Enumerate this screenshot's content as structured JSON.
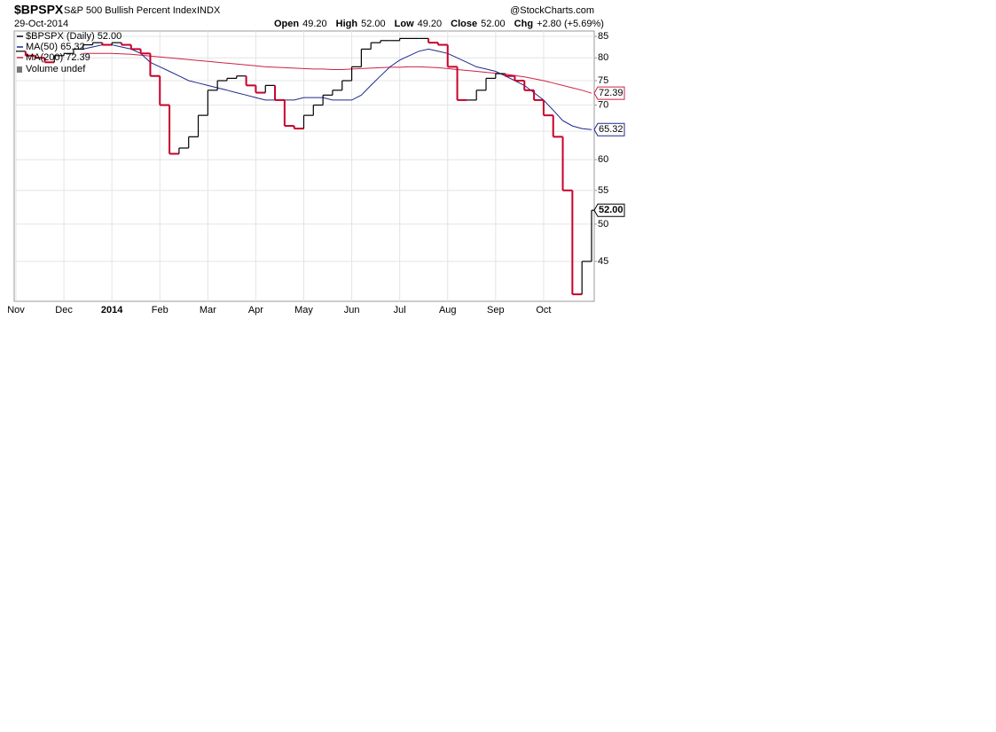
{
  "chart_data": {
    "type": "step",
    "symbol": "$BPSPX",
    "title": "S&P 500 Bullish Percent Index",
    "exchange": "INDX",
    "date": "29-Oct-2014",
    "source": "@StockCharts.com",
    "quote": [
      {
        "label": "Open",
        "value": "49.20"
      },
      {
        "label": "High",
        "value": "52.00"
      },
      {
        "label": "Low",
        "value": "49.20"
      },
      {
        "label": "Close",
        "value": "52.00"
      },
      {
        "label": "Chg",
        "value": "+2.80 (+5.69%)"
      }
    ],
    "legend_note": "Volume undef",
    "log_scale": true,
    "grid": true,
    "up_color": "#000000",
    "down_color": "#c8002a",
    "ylim": [
      40.2,
      86.3
    ],
    "yticks": [
      45,
      50,
      55,
      60,
      65,
      70,
      75,
      80,
      85
    ],
    "categories": [
      "Nov",
      null,
      null,
      null,
      null,
      "Dec",
      null,
      null,
      null,
      null,
      "2014",
      null,
      null,
      null,
      null,
      "Feb",
      null,
      null,
      null,
      null,
      "Mar",
      null,
      null,
      null,
      null,
      "Apr",
      null,
      null,
      null,
      null,
      "May",
      null,
      null,
      null,
      null,
      "Jun",
      null,
      null,
      null,
      null,
      "Jul",
      null,
      null,
      null,
      null,
      "Aug",
      null,
      null,
      null,
      null,
      "Sep",
      null,
      null,
      null,
      null,
      "Oct",
      null,
      null,
      null,
      null,
      null
    ],
    "series": [
      {
        "name": "$BPSPX (Daily) 52.00",
        "color": "#000000",
        "end_label": "52.00",
        "values": [
          81.5,
          80.5,
          80,
          79,
          80.5,
          81,
          82,
          83,
          83.5,
          83,
          83.5,
          83,
          82,
          81,
          76,
          70,
          61,
          62,
          64,
          68,
          73,
          75,
          75.5,
          76,
          74,
          72.5,
          74,
          71,
          66,
          65.5,
          68,
          70,
          72,
          73,
          75,
          78,
          82,
          83.5,
          84,
          84,
          84.5,
          84.5,
          84.5,
          83.5,
          83,
          78,
          71,
          71,
          73,
          75.5,
          76.5,
          76,
          75,
          73,
          71,
          68,
          64,
          55,
          41,
          45,
          52
        ]
      },
      {
        "name": "MA(50) 65.32",
        "color": "#1c2a8c",
        "end_label": "65.32",
        "values": [
          null,
          null,
          null,
          null,
          null,
          null,
          null,
          82,
          82.5,
          83,
          83,
          82.5,
          82,
          81,
          79,
          78,
          77,
          76,
          75,
          74.5,
          74,
          73.5,
          73,
          72.5,
          72,
          71.5,
          71,
          71,
          71,
          71,
          71.5,
          71.5,
          71.5,
          71,
          71,
          71,
          72,
          74,
          76,
          78,
          79.5,
          80.5,
          81.5,
          82,
          81.5,
          81,
          80,
          79,
          78,
          77.5,
          77,
          76,
          75,
          74,
          72.5,
          71,
          69,
          67,
          66,
          65.5,
          65.32
        ]
      },
      {
        "name": "MA(200) 72.39",
        "color": "#cc2244",
        "end_label": "72.39",
        "values": [
          null,
          null,
          null,
          null,
          null,
          null,
          null,
          81,
          81,
          81,
          81,
          80.9,
          80.8,
          80.6,
          80.4,
          80.2,
          80,
          79.8,
          79.6,
          79.4,
          79.2,
          79,
          78.8,
          78.6,
          78.4,
          78.2,
          78,
          77.9,
          77.8,
          77.7,
          77.6,
          77.5,
          77.5,
          77.4,
          77.4,
          77.5,
          77.6,
          77.7,
          77.8,
          77.9,
          77.9,
          78,
          78,
          77.9,
          77.8,
          77.6,
          77.4,
          77.2,
          77,
          76.8,
          76.6,
          76.4,
          76.1,
          75.8,
          75.4,
          75,
          74.5,
          74,
          73.5,
          73,
          72.39
        ]
      }
    ]
  }
}
